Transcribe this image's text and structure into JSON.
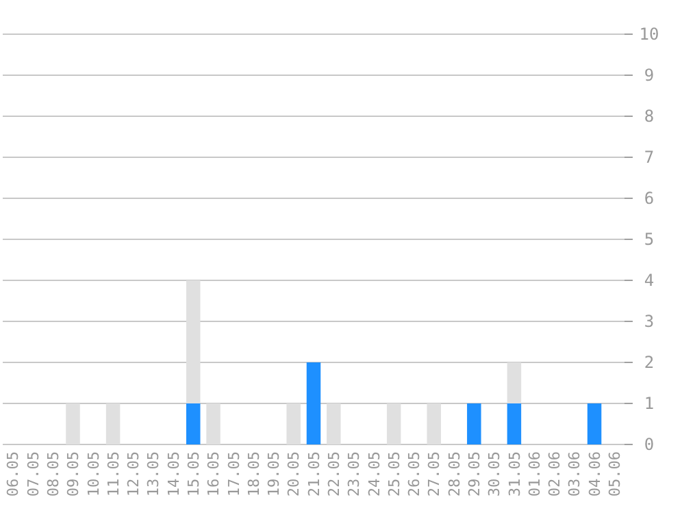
{
  "chart_data": {
    "type": "bar",
    "stacked": true,
    "categories": [
      "06.05",
      "07.05",
      "08.05",
      "09.05",
      "10.05",
      "11.05",
      "12.05",
      "13.05",
      "14.05",
      "15.05",
      "16.05",
      "17.05",
      "18.05",
      "19.05",
      "20.05",
      "21.05",
      "22.05",
      "23.05",
      "24.05",
      "25.05",
      "26.05",
      "27.05",
      "28.05",
      "29.05",
      "30.05",
      "31.05",
      "01.06",
      "02.06",
      "03.06",
      "04.06",
      "05.06"
    ],
    "series": [
      {
        "color": "#1e90ff",
        "values": [
          0,
          0,
          0,
          0,
          0,
          0,
          0,
          0,
          0,
          1,
          0,
          0,
          0,
          0,
          0,
          2,
          0,
          0,
          0,
          0,
          0,
          0,
          0,
          1,
          0,
          1,
          0,
          0,
          0,
          1,
          0
        ]
      },
      {
        "color": "#e0e0e0",
        "values": [
          0,
          0,
          0,
          1,
          0,
          1,
          0,
          0,
          0,
          3,
          1,
          0,
          0,
          0,
          1,
          0,
          1,
          0,
          0,
          1,
          0,
          1,
          0,
          0,
          0,
          1,
          0,
          0,
          0,
          0,
          0
        ]
      }
    ],
    "ylim": [
      0,
      10
    ],
    "yticks": [
      0,
      1,
      2,
      3,
      4,
      5,
      6,
      7,
      8,
      9,
      10
    ],
    "grid": "y"
  }
}
